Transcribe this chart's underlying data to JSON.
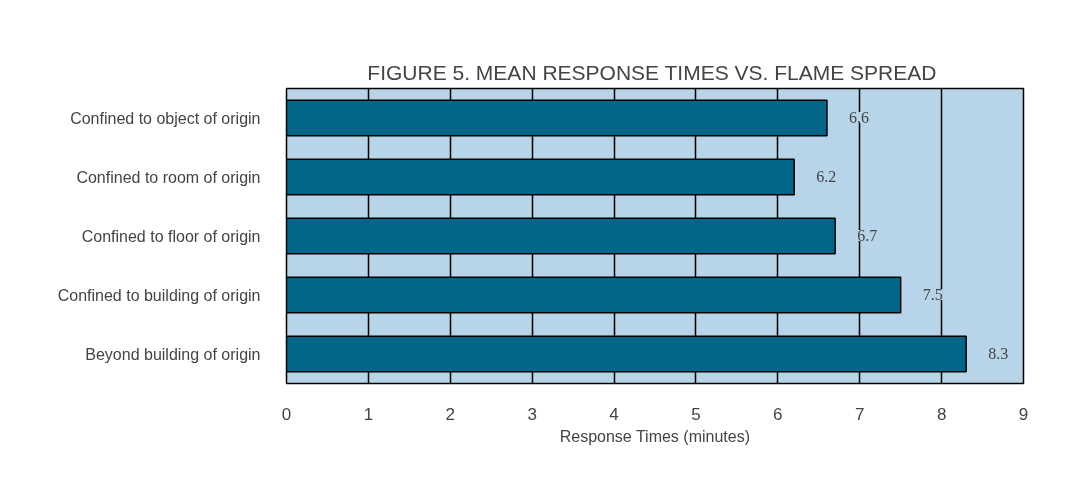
{
  "chart_data": {
    "type": "bar",
    "orientation": "horizontal",
    "title": "FIGURE 5.  MEAN RESPONSE TIMES VS. FLAME SPREAD",
    "xlabel": "Response Times (minutes)",
    "categories": [
      "Confined to object of origin",
      "Confined to room of origin",
      "Confined to floor of origin",
      "Confined to building of origin",
      "Beyond building of origin"
    ],
    "values": [
      6.6,
      6.2,
      6.7,
      7.5,
      8.3
    ],
    "color": "#00668a",
    "xlim": [
      0,
      9
    ],
    "xticks": [
      0,
      1,
      2,
      3,
      4,
      5,
      6,
      7,
      8,
      9
    ],
    "grid": "x",
    "data_labels": true
  }
}
